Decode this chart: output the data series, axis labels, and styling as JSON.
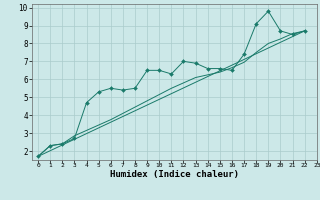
{
  "xlabel": "Humidex (Indice chaleur)",
  "bg_color": "#cce8e8",
  "grid_color": "#aacccc",
  "line_color": "#1a7a6a",
  "xlim": [
    -0.5,
    23
  ],
  "ylim": [
    1.5,
    10.2
  ],
  "xticks": [
    0,
    1,
    2,
    3,
    4,
    5,
    6,
    7,
    8,
    9,
    10,
    11,
    12,
    13,
    14,
    15,
    16,
    17,
    18,
    19,
    20,
    21,
    22,
    23
  ],
  "yticks": [
    2,
    3,
    4,
    5,
    6,
    7,
    8,
    9,
    10
  ],
  "series1_x": [
    0,
    1,
    2,
    3,
    4,
    5,
    6,
    7,
    8,
    9,
    10,
    11,
    12,
    13,
    14,
    15,
    16,
    17,
    18,
    19,
    20,
    21,
    22
  ],
  "series1_y": [
    1.7,
    2.3,
    2.4,
    2.7,
    4.7,
    5.3,
    5.5,
    5.4,
    5.5,
    6.5,
    6.5,
    6.3,
    7.0,
    6.9,
    6.6,
    6.6,
    6.5,
    7.4,
    9.1,
    9.8,
    8.7,
    8.5,
    8.7
  ],
  "series2_x": [
    0,
    22
  ],
  "series2_y": [
    1.7,
    8.7
  ],
  "series3_x": [
    0,
    1,
    2,
    3,
    4,
    5,
    6,
    7,
    8,
    9,
    10,
    11,
    12,
    13,
    14,
    15,
    16,
    17,
    18,
    19,
    20,
    21,
    22
  ],
  "series3_y": [
    1.7,
    2.3,
    2.4,
    2.85,
    3.15,
    3.45,
    3.75,
    4.1,
    4.45,
    4.8,
    5.15,
    5.5,
    5.8,
    6.1,
    6.25,
    6.4,
    6.65,
    6.95,
    7.5,
    8.0,
    8.25,
    8.55,
    8.7
  ]
}
